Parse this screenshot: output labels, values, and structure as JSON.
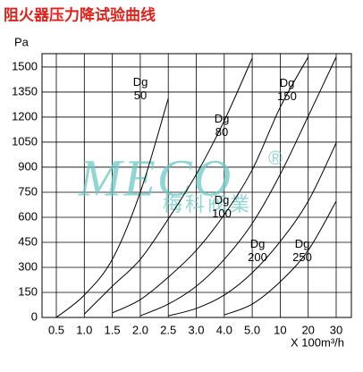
{
  "chart_data": {
    "type": "line",
    "title": "阻火器压力降试验曲线",
    "y_label": "Pa",
    "x_label": "X 100m³/h",
    "categories": [
      "0.5",
      "1.0",
      "1.5",
      "2.0",
      "2.5",
      "3.0",
      "4.0",
      "5.0",
      "10",
      "20",
      "30"
    ],
    "ylim": [
      0,
      1580
    ],
    "yticks": [
      0,
      150,
      300,
      450,
      600,
      750,
      900,
      1050,
      1200,
      1350,
      1500
    ],
    "grid": true,
    "series": [
      {
        "name": "Dg 50",
        "color": "#000000",
        "values": [
          0,
          134,
          348,
          750,
          1312,
          null,
          null,
          null,
          null,
          null,
          null
        ]
      },
      {
        "name": "Dg 80",
        "color": "#000000",
        "values": [
          null,
          20,
          187,
          348,
          590,
          857,
          1178,
          1553,
          null,
          null,
          null
        ]
      },
      {
        "name": "Dg 100",
        "color": "#000000",
        "values": [
          null,
          null,
          27,
          107,
          241,
          402,
          616,
          884,
          1259,
          1560,
          null
        ]
      },
      {
        "name": "Dg 150",
        "color": "#000000",
        "values": [
          null,
          null,
          null,
          10,
          80,
          187,
          348,
          563,
          857,
          1205,
          1560
        ]
      },
      {
        "name": "Dg 200",
        "color": "#000000",
        "values": [
          null,
          null,
          null,
          null,
          10,
          54,
          134,
          268,
          455,
          696,
          1045
        ]
      },
      {
        "name": "Dg 250",
        "color": "#000000",
        "values": [
          null,
          null,
          null,
          null,
          null,
          null,
          15,
          80,
          214,
          402,
          696
        ]
      }
    ],
    "watermark": {
      "brand": "MECO",
      "mark": "®",
      "subtitle": "梅科阀業"
    }
  }
}
